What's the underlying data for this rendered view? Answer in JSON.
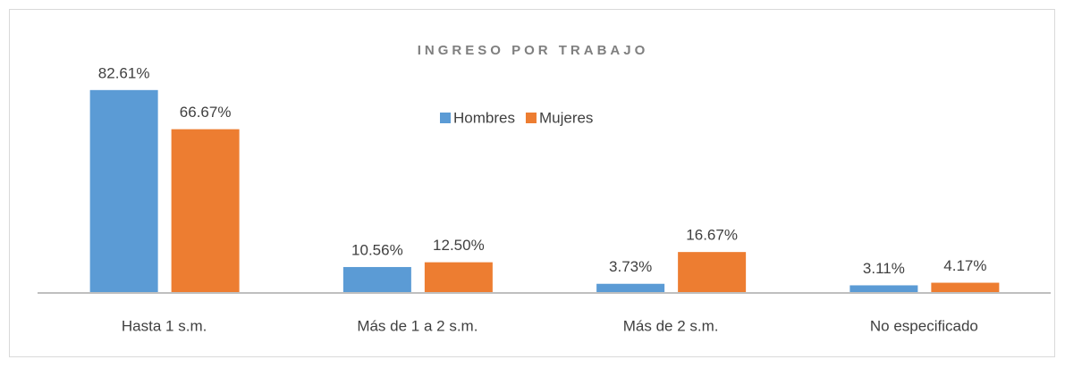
{
  "chart_data": {
    "type": "bar",
    "title": "INGRESO POR TRABAJO",
    "categories": [
      "Hasta 1 s.m.",
      "Más de 1 a 2 s.m.",
      "Más de 2 s.m.",
      "No especificado"
    ],
    "series": [
      {
        "name": "Hombres",
        "color": "#5b9bd5",
        "values": [
          82.61,
          10.56,
          3.73,
          3.11
        ],
        "value_labels": [
          "82.61%",
          "10.56%",
          "3.73%",
          "3.11%"
        ]
      },
      {
        "name": "Mujeres",
        "color": "#ed7d31",
        "values": [
          66.67,
          12.5,
          16.67,
          4.17
        ],
        "value_labels": [
          "66.67%",
          "12.50%",
          "16.67%",
          "4.17%"
        ]
      }
    ],
    "ylim": [
      0,
      100
    ],
    "legend": "top"
  }
}
